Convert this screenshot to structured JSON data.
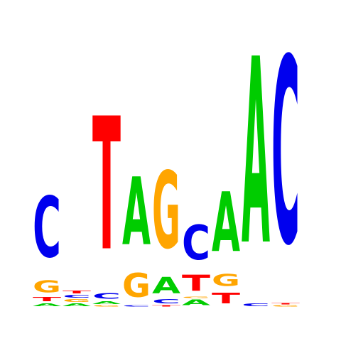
{
  "colors": {
    "A": "#00cc00",
    "C": "#0000ee",
    "G": "#ffa500",
    "T": "#ff0000"
  },
  "chart_data": {
    "type": "sequence-logo",
    "title": "",
    "xlabel": "",
    "ylabel": "",
    "alphabet": [
      "A",
      "C",
      "G",
      "T"
    ],
    "positions": [
      {
        "index": 1,
        "stack": [
          {
            "base": "A",
            "height": 0.02
          },
          {
            "base": "T",
            "height": 0.03
          },
          {
            "base": "G",
            "height": 0.09
          },
          {
            "base": "C",
            "height": 0.46
          }
        ]
      },
      {
        "index": 2,
        "stack": [
          {
            "base": "A",
            "height": 0.02
          },
          {
            "base": "G",
            "height": 0.02
          },
          {
            "base": "C",
            "height": 0.02
          },
          {
            "base": "T",
            "height": 0.02
          }
        ]
      },
      {
        "index": 3,
        "stack": [
          {
            "base": "G",
            "height": 0.01
          },
          {
            "base": "A",
            "height": 0.02
          },
          {
            "base": "C",
            "height": 0.04
          },
          {
            "base": "T",
            "height": 1.0
          }
        ]
      },
      {
        "index": 4,
        "stack": [
          {
            "base": "C",
            "height": 0.01
          },
          {
            "base": "G",
            "height": 0.18
          },
          {
            "base": "A",
            "height": 0.51
          }
        ]
      },
      {
        "index": 5,
        "stack": [
          {
            "base": "T",
            "height": 0.01
          },
          {
            "base": "C",
            "height": 0.03
          },
          {
            "base": "A",
            "height": 0.12
          },
          {
            "base": "G",
            "height": 0.58
          }
        ]
      },
      {
        "index": 6,
        "stack": [
          {
            "base": "A",
            "height": 0.04
          },
          {
            "base": "G",
            "height": 0.01
          },
          {
            "base": "T",
            "height": 0.12
          },
          {
            "base": "C",
            "height": 0.26
          }
        ]
      },
      {
        "index": 7,
        "stack": [
          {
            "base": "T",
            "height": 0.08
          },
          {
            "base": "G",
            "height": 0.09
          },
          {
            "base": "A",
            "height": 0.45
          }
        ]
      },
      {
        "index": 8,
        "stack": [
          {
            "base": "C",
            "height": 0.02
          },
          {
            "base": "A",
            "height": 1.4
          }
        ]
      },
      {
        "index": 9,
        "stack": [
          {
            "base": "G",
            "height": 0.01
          },
          {
            "base": "T",
            "height": 0.01
          },
          {
            "base": "C",
            "height": 1.4
          }
        ]
      }
    ]
  }
}
